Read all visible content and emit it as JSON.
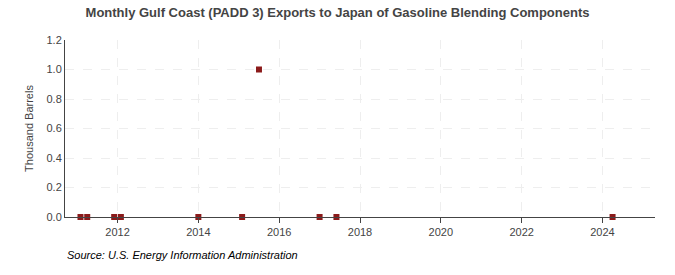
{
  "chart_data": {
    "type": "scatter",
    "title": "Monthly Gulf Coast (PADD 3) Exports to Japan of Gasoline Blending Components",
    "ylabel": "Thousand Barrels",
    "annotations": [
      "Source: U.S. Energy Information Administration"
    ],
    "x": [
      2011.083,
      2011.25,
      2011.917,
      2012.083,
      2014.0,
      2015.083,
      2015.5,
      2017.0,
      2017.417,
      2024.25
    ],
    "values": [
      0.0,
      0.0,
      0.0,
      0.0,
      0.0,
      0.0,
      1.0,
      0.0,
      0.0,
      0.0
    ],
    "color": "#8b1a1a",
    "marker": "square",
    "xlim": [
      2010.7,
      2025.3
    ],
    "xticks": [
      2012,
      2014,
      2016,
      2018,
      2020,
      2022,
      2024
    ],
    "ylim": [
      0.0,
      1.2
    ],
    "yticks": [
      {
        "value": 0.0,
        "label": "0.0"
      },
      0.2,
      0.4,
      0.6,
      0.8,
      {
        "value": 1.0,
        "label": "1.0"
      },
      1.2
    ],
    "grid": true
  }
}
